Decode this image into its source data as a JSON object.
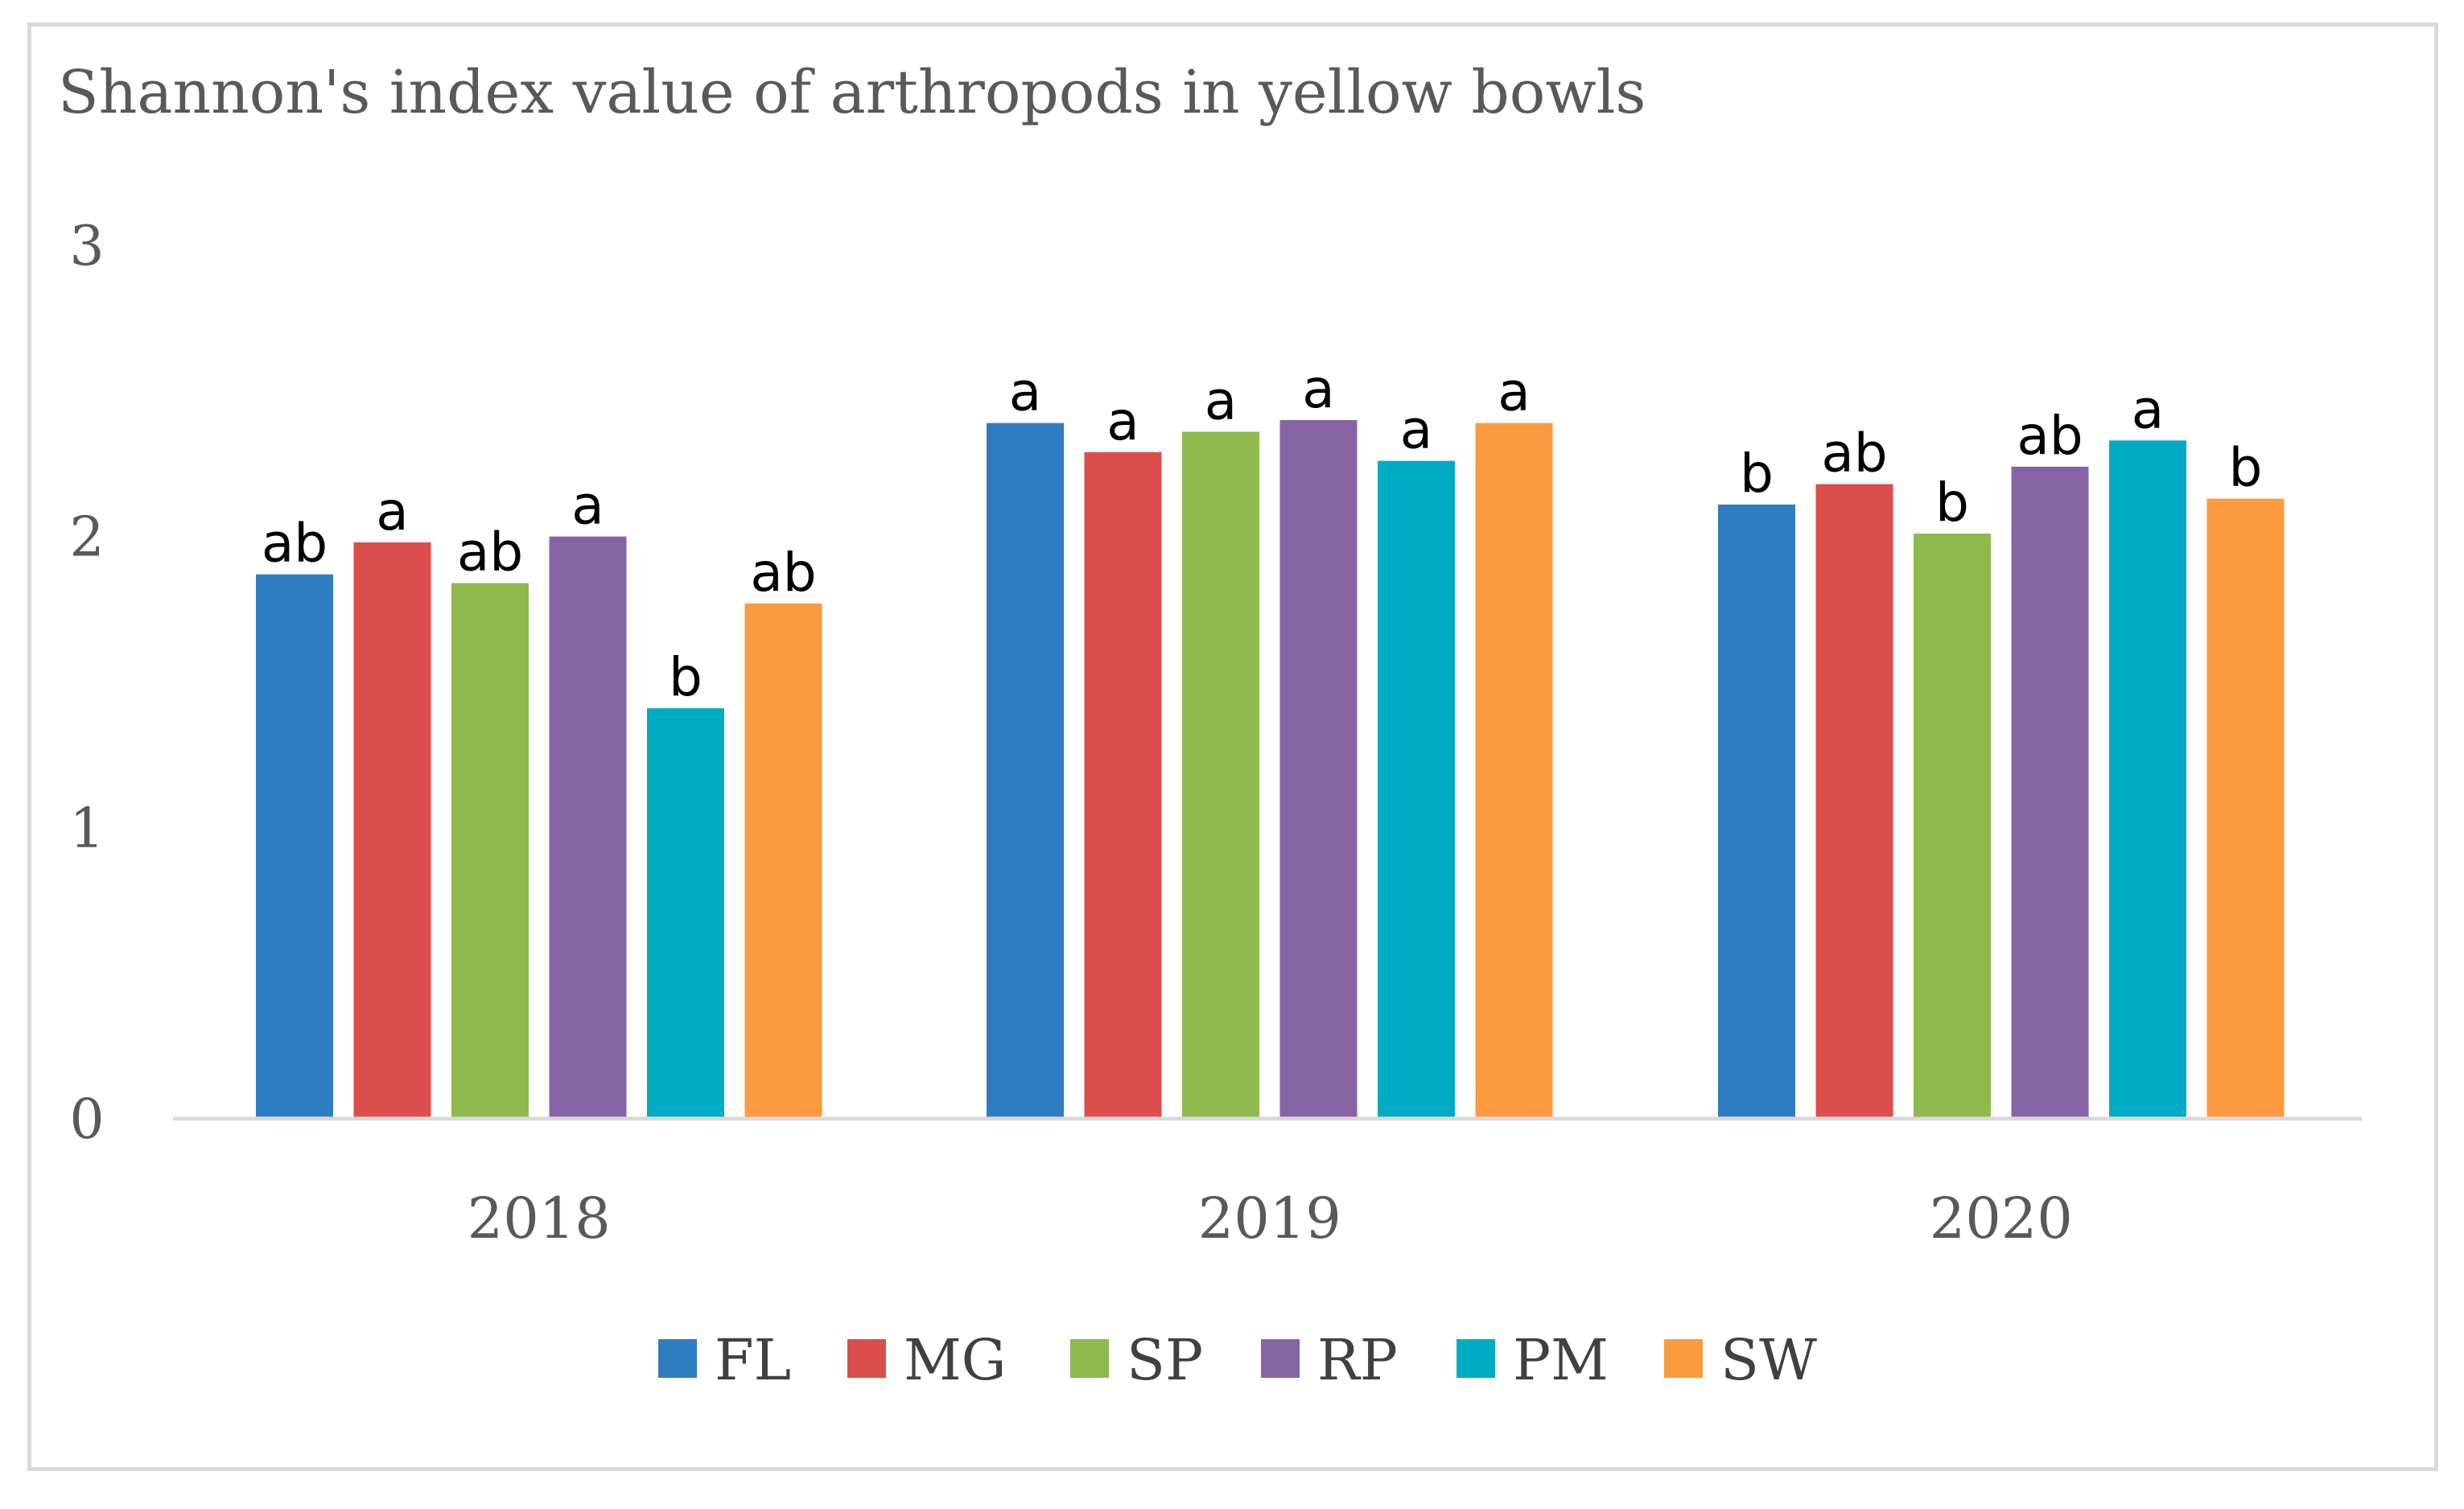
{
  "chart_data": {
    "type": "bar",
    "title": "Shannon's index value of arthropods in yellow bowls",
    "xlabel": "",
    "ylabel": "",
    "ylim": [
      0,
      3
    ],
    "yticks": [
      "0",
      "1",
      "2",
      "3"
    ],
    "categories": [
      "2018",
      "2019",
      "2020"
    ],
    "legend_position": "bottom",
    "gridlines": false,
    "series": [
      {
        "name": "FL",
        "color": "#2e7dc0",
        "values": [
          1.87,
          2.39,
          2.11
        ],
        "labels": [
          "ab",
          "a",
          "b"
        ]
      },
      {
        "name": "MG",
        "color": "#db4e4b",
        "values": [
          1.98,
          2.29,
          2.18
        ],
        "labels": [
          "a",
          "a",
          "ab"
        ]
      },
      {
        "name": "SP",
        "color": "#8db94d",
        "values": [
          1.84,
          2.36,
          2.01
        ],
        "labels": [
          "ab",
          "a",
          "b"
        ]
      },
      {
        "name": "RP",
        "color": "#8764a6",
        "values": [
          2.0,
          2.4,
          2.24
        ],
        "labels": [
          "a",
          "a",
          "ab"
        ]
      },
      {
        "name": "PM",
        "color": "#00abc5",
        "values": [
          1.41,
          2.26,
          2.33
        ],
        "labels": [
          "b",
          "a",
          "a"
        ]
      },
      {
        "name": "SW",
        "color": "#fb9a3e",
        "values": [
          1.77,
          2.39,
          2.13
        ],
        "labels": [
          "ab",
          "a",
          "b"
        ]
      }
    ]
  }
}
